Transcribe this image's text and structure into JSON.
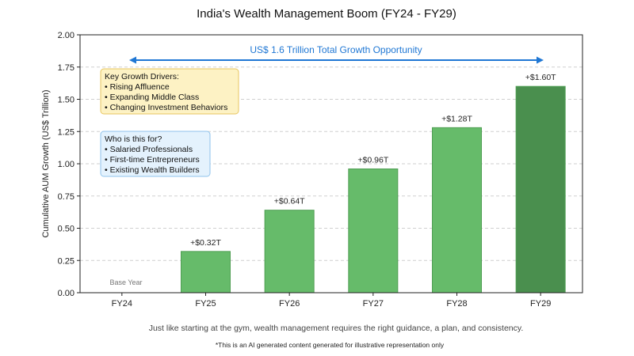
{
  "chart_data": {
    "type": "bar",
    "title": "India's Wealth Management Boom (FY24 - FY29)",
    "ylabel": "Cumulative AUM Growth (US$ Trillion)",
    "xlabel": "",
    "categories": [
      "FY24",
      "FY25",
      "FY26",
      "FY27",
      "FY28",
      "FY29"
    ],
    "values": [
      0,
      0.32,
      0.64,
      0.96,
      1.28,
      1.6
    ],
    "data_labels": [
      "",
      "+$0.32T",
      "+$0.64T",
      "+$0.96T",
      "+$1.28T",
      "+$1.60T"
    ],
    "y_ticks": [
      "0.00",
      "0.25",
      "0.50",
      "0.75",
      "1.00",
      "1.25",
      "1.50",
      "1.75",
      "2.00"
    ],
    "ylim": [
      0,
      2
    ],
    "grid": "horizontal dashed",
    "colors": {
      "bar": "#66bb6a",
      "bar_highlight": "#4a8f4e",
      "bar_edge": "#4f9e53",
      "arrow": "#1f77d4"
    },
    "base_label": "Base Year",
    "arrow_label": "US$ 1.6 Trillion Total Growth Opportunity",
    "boxes": [
      {
        "lines": [
          "Key Growth Drivers:",
          "• Rising Affluence",
          "• Expanding Middle Class",
          "• Changing Investment Behaviors"
        ],
        "fill": "#fdf2c4",
        "stroke": "#e8c660"
      },
      {
        "lines": [
          "Who is this for?",
          "• Salaried Professionals",
          "• First-time Entrepreneurs",
          "• Existing Wealth Builders"
        ],
        "fill": "#e4f2fd",
        "stroke": "#8fc3ec"
      }
    ]
  },
  "caption": "Just like starting at the gym, wealth management requires the right guidance, a plan, and consistency.",
  "footnote": "*This is an AI generated content generated for illustrative representation only"
}
